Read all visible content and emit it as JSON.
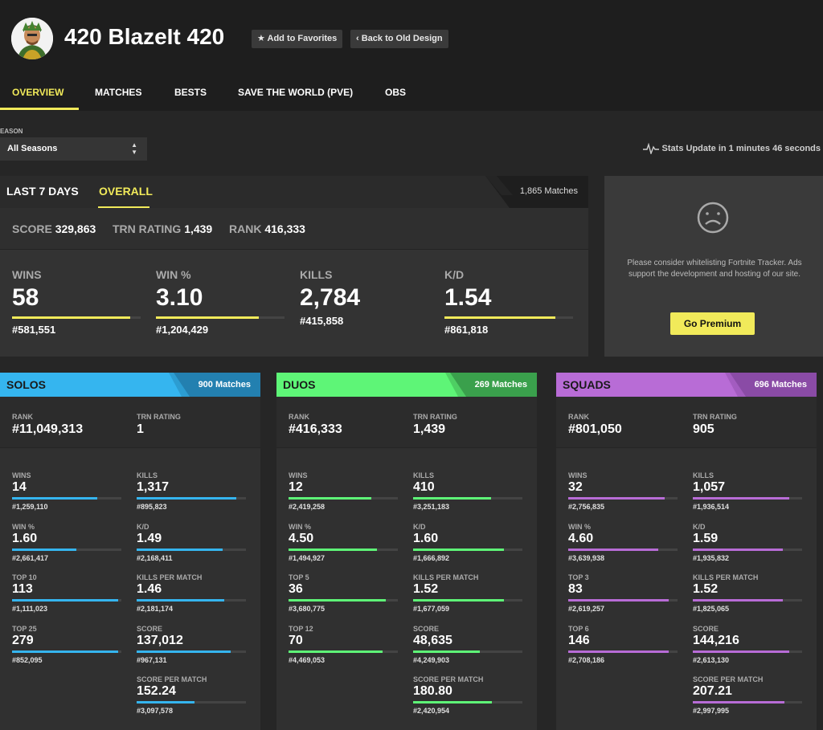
{
  "header": {
    "player_name": "420 BlazeIt 420",
    "favorites_label": "★ Add to Favorites",
    "old_design_label": "‹ Back to Old Design"
  },
  "tabs": [
    {
      "label": "OVERVIEW",
      "active": true
    },
    {
      "label": "MATCHES"
    },
    {
      "label": "BESTS"
    },
    {
      "label": "SAVE THE WORLD (PVE)"
    },
    {
      "label": "OBS"
    }
  ],
  "season": {
    "label": "EASON",
    "selected": "All Seasons"
  },
  "stats_update": "Stats Update in 1 minutes 46 seconds",
  "overview": {
    "tabs": [
      "LAST 7 DAYS",
      "OVERALL"
    ],
    "matches": "1,865 Matches",
    "scoreline": [
      {
        "label": "SCORE",
        "value": "329,863"
      },
      {
        "label": "TRN RATING",
        "value": "1,439"
      },
      {
        "label": "RANK",
        "value": "416,333"
      }
    ],
    "stats": [
      {
        "label": "WINS",
        "value": "58",
        "rank": "#581,551",
        "fill": 0.92
      },
      {
        "label": "WIN %",
        "value": "3.10",
        "rank": "#1,204,429",
        "fill": 0.8
      },
      {
        "label": "KILLS",
        "value": "2,784",
        "rank": "#415,858",
        "fill": null
      },
      {
        "label": "K/D",
        "value": "1.54",
        "rank": "#861,818",
        "fill": 0.86
      }
    ]
  },
  "ad": {
    "text": "Please consider whitelisting Fortnite Tracker. Ads support the development and hosting of our site.",
    "button": "Go Premium"
  },
  "colors": {
    "accent": "#f1ea5a",
    "solos": "#35b5ef",
    "solos_dark": "#2380b0",
    "duos": "#5ef577",
    "duos_dark": "#3aa04c",
    "squads": "#b86cd6",
    "squads_dark": "#8a4ba6"
  },
  "modes": {
    "solos": {
      "title": "SOLOS",
      "matches": "900 Matches",
      "rank_label": "RANK",
      "rank": "#11,049,313",
      "trn_label": "TRN RATING",
      "trn": "1",
      "left": [
        {
          "label": "WINS",
          "value": "14",
          "rank": "#1,259,110",
          "fill": 0.78
        },
        {
          "label": "WIN %",
          "value": "1.60",
          "rank": "#2,661,417",
          "fill": 0.59
        },
        {
          "label": "TOP 10",
          "value": "113",
          "rank": "#1,111,023",
          "fill": 0.97
        },
        {
          "label": "TOP 25",
          "value": "279",
          "rank": "#852,095",
          "fill": 0.97
        }
      ],
      "right": [
        {
          "label": "KILLS",
          "value": "1,317",
          "rank": "#895,823",
          "fill": 0.91
        },
        {
          "label": "K/D",
          "value": "1.49",
          "rank": "#2,168,411",
          "fill": 0.79
        },
        {
          "label": "KILLS PER MATCH",
          "value": "1.46",
          "rank": "#2,181,174",
          "fill": 0.8
        },
        {
          "label": "SCORE",
          "value": "137,012",
          "rank": "#967,131",
          "fill": 0.86
        },
        {
          "label": "SCORE PER MATCH",
          "value": "152.24",
          "rank": "#3,097,578",
          "fill": 0.53
        }
      ]
    },
    "duos": {
      "title": "DUOS",
      "matches": "269 Matches",
      "rank_label": "RANK",
      "rank": "#416,333",
      "trn_label": "TRN RATING",
      "trn": "1,439",
      "left": [
        {
          "label": "WINS",
          "value": "12",
          "rank": "#2,419,258",
          "fill": 0.76
        },
        {
          "label": "WIN %",
          "value": "4.50",
          "rank": "#1,494,927",
          "fill": 0.81
        },
        {
          "label": "TOP 5",
          "value": "36",
          "rank": "#3,680,775",
          "fill": 0.89
        },
        {
          "label": "TOP 12",
          "value": "70",
          "rank": "#4,469,053",
          "fill": 0.86
        }
      ],
      "right": [
        {
          "label": "KILLS",
          "value": "410",
          "rank": "#3,251,183",
          "fill": 0.71
        },
        {
          "label": "K/D",
          "value": "1.60",
          "rank": "#1,666,892",
          "fill": 0.83
        },
        {
          "label": "KILLS PER MATCH",
          "value": "1.52",
          "rank": "#1,677,059",
          "fill": 0.83
        },
        {
          "label": "SCORE",
          "value": "48,635",
          "rank": "#4,249,903",
          "fill": 0.61
        },
        {
          "label": "SCORE PER MATCH",
          "value": "180.80",
          "rank": "#2,420,954",
          "fill": 0.72
        }
      ]
    },
    "squads": {
      "title": "SQUADS",
      "matches": "696 Matches",
      "rank_label": "RANK",
      "rank": "#801,050",
      "trn_label": "TRN RATING",
      "trn": "905",
      "left": [
        {
          "label": "WINS",
          "value": "32",
          "rank": "#2,756,835",
          "fill": 0.88
        },
        {
          "label": "WIN %",
          "value": "4.60",
          "rank": "#3,639,938",
          "fill": 0.82
        },
        {
          "label": "TOP 3",
          "value": "83",
          "rank": "#2,619,257",
          "fill": 0.92
        },
        {
          "label": "TOP 6",
          "value": "146",
          "rank": "#2,708,186",
          "fill": 0.92
        }
      ],
      "right": [
        {
          "label": "KILLS",
          "value": "1,057",
          "rank": "#1,936,514",
          "fill": 0.88
        },
        {
          "label": "K/D",
          "value": "1.59",
          "rank": "#1,935,832",
          "fill": 0.82
        },
        {
          "label": "KILLS PER MATCH",
          "value": "1.52",
          "rank": "#1,825,065",
          "fill": 0.82
        },
        {
          "label": "SCORE",
          "value": "144,216",
          "rank": "#2,613,130",
          "fill": 0.88
        },
        {
          "label": "SCORE PER MATCH",
          "value": "207.21",
          "rank": "#2,997,995",
          "fill": 0.84
        }
      ]
    }
  }
}
